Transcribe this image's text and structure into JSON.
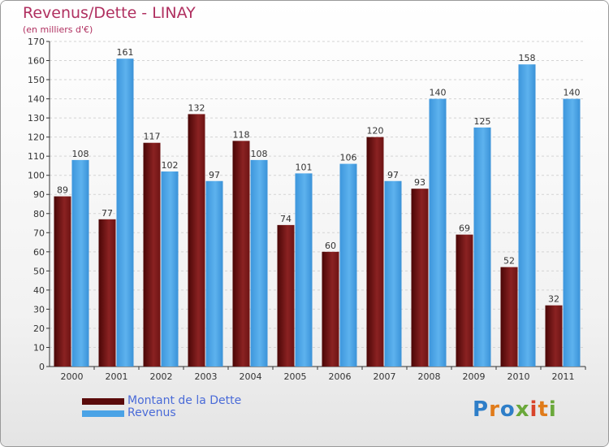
{
  "chart_data": {
    "type": "bar",
    "title": "Revenus/Dette - LINAY",
    "subtitle": "(en milliers d'€)",
    "categories": [
      "2000",
      "2001",
      "2002",
      "2003",
      "2004",
      "2005",
      "2006",
      "2007",
      "2008",
      "2009",
      "2010",
      "2011"
    ],
    "series": [
      {
        "name": "Montant de la Dette",
        "color": "#7a1a1a",
        "values": [
          89,
          77,
          117,
          132,
          118,
          74,
          60,
          120,
          93,
          69,
          52,
          32
        ]
      },
      {
        "name": "Revenus",
        "color": "#4aa3e6",
        "values": [
          108,
          161,
          102,
          97,
          108,
          101,
          106,
          97,
          140,
          125,
          158,
          140
        ]
      }
    ],
    "ylim": [
      0,
      170
    ],
    "yticks": [
      0,
      10,
      20,
      30,
      40,
      50,
      60,
      70,
      80,
      90,
      100,
      110,
      120,
      130,
      140,
      150,
      160,
      170
    ],
    "grid": true,
    "legend_position": "bottom-left"
  },
  "logo": {
    "text": "Proxiti"
  }
}
